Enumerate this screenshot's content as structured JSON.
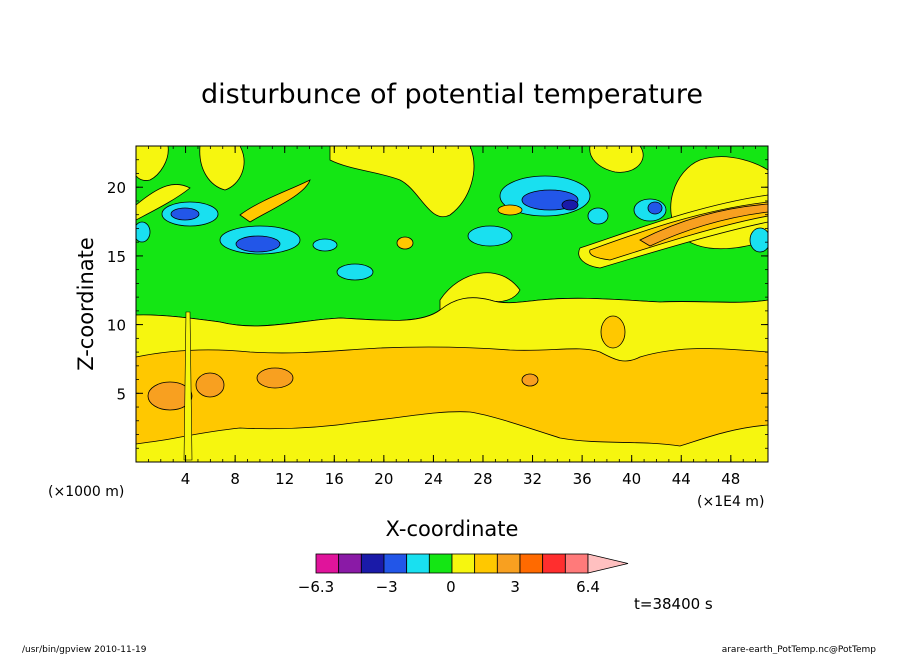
{
  "chart_data": {
    "type": "heatmap",
    "title": "disturbunce of potential temperature",
    "xlabel": "X-coordinate",
    "ylabel": "Z-coordinate",
    "x_unit_left": "(×1000 m)",
    "x_unit_right": "(×1E4 m)",
    "xlim": [
      0,
      51
    ],
    "ylim": [
      0,
      23
    ],
    "x_ticks": [
      "4",
      "8",
      "12",
      "16",
      "20",
      "24",
      "28",
      "32",
      "36",
      "40",
      "44",
      "48"
    ],
    "y_ticks": [
      "5",
      "10",
      "15",
      "20"
    ],
    "colorbar": {
      "levels": [
        -6.3,
        -5.25,
        -4.2,
        -3.15,
        -2.1,
        -1.05,
        0,
        1.05,
        2.1,
        3.15,
        4.2,
        5.25,
        6.4
      ],
      "colors": [
        "#e0149b",
        "#8a1aa6",
        "#1a1aa8",
        "#2256e8",
        "#19e0f0",
        "#14e614",
        "#f6f60f",
        "#ffc800",
        "#f8a020",
        "#ff6a00",
        "#ff2e2e",
        "#ff7a7a",
        "#ffc0c0"
      ],
      "tick_labels": [
        "−6.3",
        "−3",
        "0",
        "3",
        "6.4"
      ]
    },
    "timestamp": "t=38400 s",
    "footer_left": "/usr/bin/gpview  2010-11-19",
    "footer_right": "arare-earth_PotTemp.nc@PotTemp"
  }
}
